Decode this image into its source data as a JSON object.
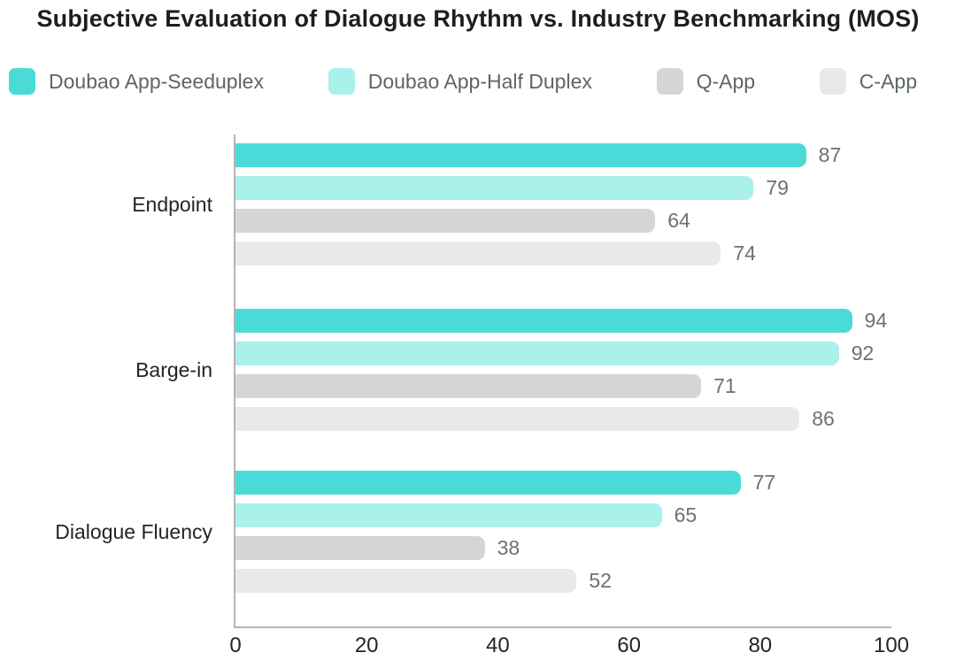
{
  "title": "Subjective Evaluation of Dialogue Rhythm vs. Industry Benchmarking (MOS)",
  "legend": [
    {
      "label": "Doubao App-Seeduplex",
      "color": "#4ADBD8"
    },
    {
      "label": "Doubao App-Half Duplex",
      "color": "#AAF0EB"
    },
    {
      "label": "Q-App",
      "color": "#D5D5D5"
    },
    {
      "label": "C-App",
      "color": "#E9E9E9"
    }
  ],
  "chart_data": {
    "type": "bar",
    "orientation": "horizontal",
    "title": "Subjective Evaluation of Dialogue Rhythm vs. Industry Benchmarking (MOS)",
    "categories": [
      "Endpoint",
      "Barge-in",
      "Dialogue Fluency"
    ],
    "series": [
      {
        "name": "Doubao App-Seeduplex",
        "color": "#4ADBD8",
        "values": [
          87,
          94,
          77
        ]
      },
      {
        "name": "Doubao App-Half Duplex",
        "color": "#AAF0EB",
        "values": [
          79,
          92,
          65
        ]
      },
      {
        "name": "Q-App",
        "color": "#D5D5D5",
        "values": [
          64,
          71,
          38
        ]
      },
      {
        "name": "C-App",
        "color": "#E9E9E9",
        "values": [
          74,
          86,
          52
        ]
      }
    ],
    "xlabel": "",
    "ylabel": "",
    "x_ticks": [
      0,
      20,
      40,
      60,
      80,
      100
    ],
    "xlim": [
      0,
      100
    ],
    "grid": false,
    "legend_position": "top",
    "value_labels": true
  },
  "colors": {
    "axis": "#b5b5b5",
    "value_label": "#707070",
    "legend_label": "#5d6569",
    "title": "#1b1e22",
    "category_label": "#212528",
    "tick_label": "#212528"
  }
}
